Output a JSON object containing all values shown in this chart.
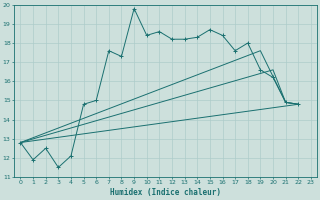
{
  "xlabel": "Humidex (Indice chaleur)",
  "xlim": [
    -0.5,
    23.5
  ],
  "ylim": [
    11,
    20
  ],
  "xticks": [
    0,
    1,
    2,
    3,
    4,
    5,
    6,
    7,
    8,
    9,
    10,
    11,
    12,
    13,
    14,
    15,
    16,
    17,
    18,
    19,
    20,
    21,
    22,
    23
  ],
  "yticks": [
    11,
    12,
    13,
    14,
    15,
    16,
    17,
    18,
    19,
    20
  ],
  "bg_color": "#cde0dc",
  "line_color": "#1a7070",
  "grid_color": "#aeccca",
  "line1_x": [
    0,
    1,
    2,
    3,
    4,
    5,
    6,
    7,
    8,
    9,
    10,
    11,
    12,
    13,
    14,
    15,
    16,
    17,
    18,
    19,
    20,
    21,
    22
  ],
  "line1_y": [
    12.8,
    11.9,
    12.5,
    11.5,
    12.1,
    14.8,
    15.0,
    17.6,
    17.3,
    19.8,
    18.4,
    18.6,
    18.2,
    18.2,
    18.3,
    18.7,
    18.4,
    17.6,
    18.0,
    16.6,
    16.2,
    14.9,
    14.8
  ],
  "line2_x": [
    0,
    22
  ],
  "line2_y": [
    12.8,
    14.8
  ],
  "line3_x": [
    0,
    20,
    21,
    22
  ],
  "line3_y": [
    12.8,
    16.6,
    14.9,
    14.8
  ],
  "line4_x": [
    0,
    19,
    21,
    22
  ],
  "line4_y": [
    12.8,
    17.6,
    14.9,
    14.8
  ]
}
